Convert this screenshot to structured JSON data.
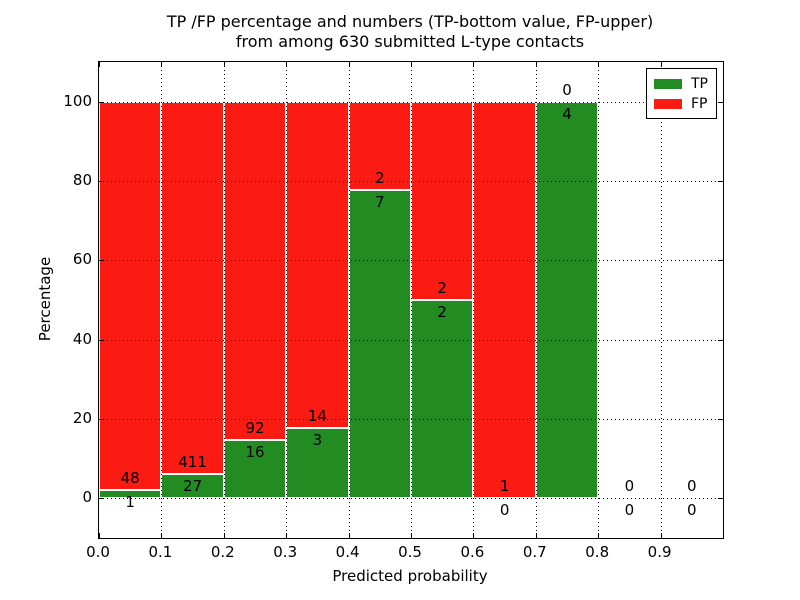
{
  "title": {
    "line1": "TP /FP percentage and numbers (TP-bottom value, FP-upper)",
    "line2": "from among 630 submitted L-type contacts"
  },
  "axes": {
    "xlabel": "Predicted probability",
    "ylabel": "Percentage",
    "x_tick_labels": [
      "0.0",
      "0.1",
      "0.2",
      "0.3",
      "0.4",
      "0.5",
      "0.6",
      "0.7",
      "0.8",
      "0.9"
    ],
    "y_tick_labels": [
      "0",
      "20",
      "40",
      "60",
      "80",
      "100"
    ],
    "y_tick_values": [
      0,
      20,
      40,
      60,
      80,
      100
    ],
    "xlim": [
      0.0,
      1.0
    ],
    "ylim": [
      -10,
      110
    ],
    "grid": "dotted"
  },
  "legend": {
    "position": "upper-right",
    "items": [
      {
        "label": "TP",
        "color": "#228b22"
      },
      {
        "label": "FP",
        "color": "#fb1b12"
      }
    ]
  },
  "chart_data": {
    "type": "bar",
    "stacked": true,
    "normalized_to_percent": 100,
    "total_contacts": 630,
    "bin_width": 0.1,
    "categories": [
      "0.0-0.1",
      "0.1-0.2",
      "0.2-0.3",
      "0.3-0.4",
      "0.4-0.5",
      "0.5-0.6",
      "0.6-0.7",
      "0.7-0.8",
      "0.8-0.9",
      "0.9-1.0"
    ],
    "series": [
      {
        "name": "TP",
        "color": "#228b22",
        "values": [
          1,
          27,
          16,
          3,
          7,
          2,
          0,
          4,
          0,
          0
        ]
      },
      {
        "name": "FP",
        "color": "#fb1b12",
        "values": [
          48,
          411,
          92,
          14,
          2,
          2,
          1,
          0,
          0,
          0
        ]
      }
    ],
    "tp_percent": [
      2.0,
      6.2,
      14.8,
      17.6,
      77.8,
      50.0,
      0.0,
      100.0,
      null,
      null
    ],
    "label_rule": "FP count above green/red boundary, TP count below boundary"
  }
}
